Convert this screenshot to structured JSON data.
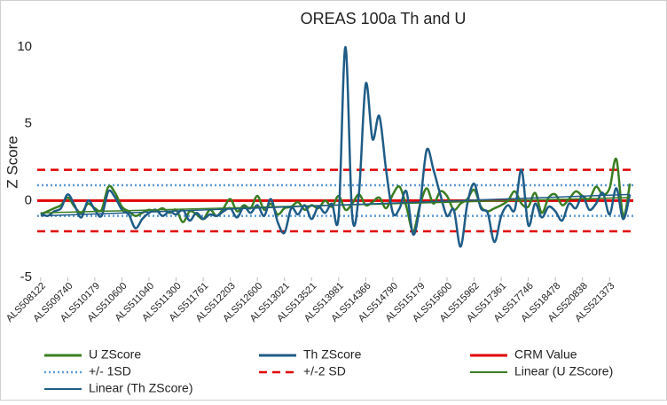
{
  "chart_data": {
    "type": "line",
    "title": "OREAS 100a Th and U",
    "y_label": "Z Score",
    "ylim": [
      -5,
      10
    ],
    "yticks": [
      -5,
      0,
      5,
      10
    ],
    "categories": [
      "ALS508122",
      null,
      null,
      null,
      "ALS509740",
      null,
      null,
      null,
      "ALS510179",
      null,
      null,
      null,
      "ALS510600",
      null,
      null,
      null,
      "ALS511040",
      null,
      null,
      null,
      "ALS511300",
      null,
      null,
      null,
      "ALS511761",
      null,
      null,
      null,
      "ALS512203",
      null,
      null,
      null,
      "ALS512600",
      null,
      null,
      null,
      "ALS513021",
      null,
      null,
      null,
      "ALS513521",
      null,
      null,
      null,
      "ALS513981",
      null,
      null,
      null,
      "ALS514366",
      null,
      null,
      null,
      "ALS514790",
      null,
      null,
      null,
      "ALS515179",
      null,
      null,
      null,
      "ALS515600",
      null,
      null,
      null,
      "ALS515962",
      null,
      null,
      null,
      "ALS517361",
      null,
      null,
      null,
      "ALS517746",
      null,
      null,
      null,
      "ALS518478",
      null,
      null,
      null,
      "ALS520838",
      null,
      null,
      null,
      "ALS521373",
      null,
      null,
      null
    ],
    "series": [
      {
        "name": "U ZScore",
        "color": "#3a7d22",
        "values": [
          -0.9,
          -0.7,
          -0.5,
          -0.3,
          0.2,
          -0.4,
          -0.8,
          -0.2,
          -0.5,
          -0.6,
          0.9,
          0.5,
          -0.4,
          -0.7,
          -1.0,
          -0.8,
          -0.6,
          -0.7,
          -0.5,
          -0.8,
          -0.6,
          -1.4,
          -0.7,
          -0.9,
          -1.2,
          -0.6,
          -1.0,
          -0.5,
          0.1,
          -0.7,
          -0.3,
          -0.5,
          0.3,
          -0.6,
          -0.2,
          -0.9,
          -0.5,
          -0.4,
          -0.1,
          -0.6,
          -0.3,
          -0.5,
          0.0,
          -0.4,
          0.3,
          -0.6,
          -0.2,
          0.4,
          -0.3,
          -0.1,
          0.2,
          -0.5,
          0.4,
          0.9,
          -0.4,
          -2.0,
          -0.3,
          0.8,
          -0.2,
          0.6,
          0.3,
          -0.6,
          -0.2,
          0.1,
          0.7,
          -0.4,
          -0.7,
          -0.5,
          -0.3,
          0.0,
          0.6,
          -0.2,
          -0.4,
          0.5,
          -0.8,
          0.2,
          0.4,
          -0.3,
          0.1,
          0.6,
          0.3,
          0.1,
          0.9,
          0.4,
          0.8,
          2.7,
          -1.0,
          1.1
        ]
      },
      {
        "name": "Th ZScore",
        "color": "#1f5c87",
        "values": [
          -0.8,
          -1.0,
          -0.7,
          -0.5,
          0.4,
          -0.3,
          -1.1,
          0.0,
          -0.6,
          -1.0,
          0.6,
          0.2,
          -0.6,
          -0.9,
          -1.8,
          -1.2,
          -0.8,
          -0.6,
          -1.0,
          -0.7,
          -0.9,
          -0.6,
          -1.3,
          -0.8,
          -1.2,
          -0.9,
          -1.0,
          -0.7,
          -0.5,
          -1.1,
          -0.4,
          -0.8,
          -0.3,
          -1.0,
          0.1,
          -1.4,
          -2.1,
          -0.5,
          -0.9,
          -0.3,
          -1.2,
          -0.4,
          -0.8,
          -0.2,
          -1.0,
          10.0,
          -1.0,
          0.5,
          7.6,
          4.0,
          5.5,
          2.0,
          -0.8,
          -0.5,
          0.6,
          -2.2,
          -0.3,
          3.3,
          2.0,
          0.4,
          -1.0,
          -0.6,
          -3.0,
          -0.2,
          1.1,
          -0.5,
          -0.8,
          -2.7,
          -1.0,
          -0.3,
          -0.6,
          2.0,
          -1.6,
          -0.2,
          -1.1,
          -0.4,
          -0.7,
          -1.3,
          -0.2,
          -0.5,
          0.3,
          -0.6,
          -0.2,
          0.5,
          -0.9,
          0.8,
          -1.2,
          0.4
        ]
      }
    ],
    "reference_lines": [
      {
        "name": "CRM Value",
        "color": "#e00000",
        "style": "solid",
        "values": [
          0
        ]
      },
      {
        "name": "+/- 1SD",
        "color": "#5b9bd5",
        "style": "dotted",
        "values": [
          1,
          -1
        ]
      },
      {
        "name": "+/-2 SD",
        "color": "#e00000",
        "style": "dashed",
        "values": [
          2,
          -2
        ]
      }
    ],
    "trendlines": [
      {
        "name": "Linear (U ZScore)",
        "color": "#3a7d22",
        "values": [
          -0.8,
          0.2
        ]
      },
      {
        "name": "Linear (Th ZScore)",
        "color": "#1f5c87",
        "values": [
          -1.0,
          0.4
        ]
      }
    ]
  }
}
